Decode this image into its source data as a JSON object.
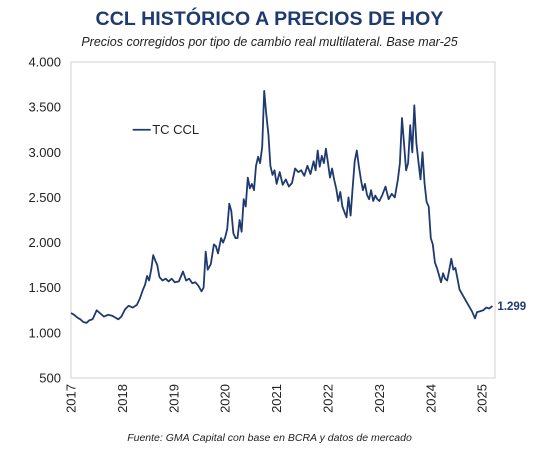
{
  "chart_data": {
    "type": "line",
    "title": "CCL HISTÓRICO A PRECIOS DE HOY",
    "subtitle": "Precios corregidos por tipo de cambio real multilateral. Base mar-25",
    "source": "Fuente: GMA Capital con base en BCRA y datos de mercado",
    "ylim": [
      500,
      4000
    ],
    "yticks": [
      500,
      1000,
      1500,
      2000,
      2500,
      3000,
      3500,
      4000
    ],
    "ytick_labels": [
      "500",
      "1.000",
      "1.500",
      "2.000",
      "2.500",
      "3.000",
      "3.500",
      "4.000"
    ],
    "xlim": [
      2017.0,
      2025.25
    ],
    "xticks": [
      2017,
      2018,
      2019,
      2020,
      2021,
      2022,
      2023,
      2024,
      2025
    ],
    "xtick_labels": [
      "2017",
      "2018",
      "2019",
      "2020",
      "2021",
      "2022",
      "2023",
      "2024",
      "2025"
    ],
    "grid": false,
    "legend": "upper-left",
    "last_value_label": "1.299",
    "line_color": "#1f3a70",
    "series": [
      {
        "name": "TC CCL",
        "points": [
          [
            2017.0,
            1220
          ],
          [
            2017.06,
            1200
          ],
          [
            2017.12,
            1170
          ],
          [
            2017.18,
            1150
          ],
          [
            2017.24,
            1120
          ],
          [
            2017.3,
            1110
          ],
          [
            2017.36,
            1140
          ],
          [
            2017.42,
            1150
          ],
          [
            2017.5,
            1250
          ],
          [
            2017.56,
            1220
          ],
          [
            2017.64,
            1180
          ],
          [
            2017.72,
            1200
          ],
          [
            2017.8,
            1190
          ],
          [
            2017.86,
            1170
          ],
          [
            2017.92,
            1150
          ],
          [
            2017.98,
            1180
          ],
          [
            2018.05,
            1260
          ],
          [
            2018.12,
            1300
          ],
          [
            2018.2,
            1280
          ],
          [
            2018.28,
            1310
          ],
          [
            2018.34,
            1380
          ],
          [
            2018.4,
            1480
          ],
          [
            2018.44,
            1530
          ],
          [
            2018.48,
            1630
          ],
          [
            2018.52,
            1580
          ],
          [
            2018.56,
            1700
          ],
          [
            2018.6,
            1860
          ],
          [
            2018.64,
            1800
          ],
          [
            2018.68,
            1750
          ],
          [
            2018.72,
            1620
          ],
          [
            2018.78,
            1580
          ],
          [
            2018.84,
            1600
          ],
          [
            2018.9,
            1570
          ],
          [
            2018.96,
            1600
          ],
          [
            2019.02,
            1560
          ],
          [
            2019.1,
            1570
          ],
          [
            2019.18,
            1680
          ],
          [
            2019.24,
            1580
          ],
          [
            2019.3,
            1600
          ],
          [
            2019.36,
            1550
          ],
          [
            2019.42,
            1560
          ],
          [
            2019.48,
            1520
          ],
          [
            2019.54,
            1460
          ],
          [
            2019.58,
            1500
          ],
          [
            2019.62,
            1900
          ],
          [
            2019.66,
            1700
          ],
          [
            2019.72,
            1760
          ],
          [
            2019.78,
            1980
          ],
          [
            2019.82,
            1960
          ],
          [
            2019.86,
            1880
          ],
          [
            2019.92,
            2050
          ],
          [
            2019.96,
            2000
          ],
          [
            2020.0,
            2060
          ],
          [
            2020.04,
            2150
          ],
          [
            2020.08,
            2430
          ],
          [
            2020.12,
            2350
          ],
          [
            2020.16,
            2100
          ],
          [
            2020.2,
            2050
          ],
          [
            2020.24,
            2050
          ],
          [
            2020.28,
            2250
          ],
          [
            2020.32,
            2120
          ],
          [
            2020.36,
            2480
          ],
          [
            2020.4,
            2400
          ],
          [
            2020.44,
            2720
          ],
          [
            2020.48,
            2600
          ],
          [
            2020.52,
            2650
          ],
          [
            2020.56,
            2580
          ],
          [
            2020.6,
            2850
          ],
          [
            2020.64,
            2950
          ],
          [
            2020.68,
            2880
          ],
          [
            2020.72,
            3060
          ],
          [
            2020.76,
            3680
          ],
          [
            2020.8,
            3420
          ],
          [
            2020.84,
            3200
          ],
          [
            2020.88,
            2850
          ],
          [
            2020.92,
            2750
          ],
          [
            2020.96,
            2800
          ],
          [
            2021.0,
            2650
          ],
          [
            2021.06,
            2780
          ],
          [
            2021.12,
            2640
          ],
          [
            2021.18,
            2700
          ],
          [
            2021.24,
            2620
          ],
          [
            2021.3,
            2660
          ],
          [
            2021.36,
            2820
          ],
          [
            2021.42,
            2780
          ],
          [
            2021.48,
            2800
          ],
          [
            2021.54,
            2740
          ],
          [
            2021.6,
            2850
          ],
          [
            2021.66,
            2760
          ],
          [
            2021.72,
            2900
          ],
          [
            2021.76,
            2800
          ],
          [
            2021.8,
            3020
          ],
          [
            2021.84,
            2840
          ],
          [
            2021.88,
            2960
          ],
          [
            2021.92,
            2880
          ],
          [
            2021.96,
            3040
          ],
          [
            2022.0,
            2880
          ],
          [
            2022.04,
            2720
          ],
          [
            2022.08,
            2820
          ],
          [
            2022.12,
            2700
          ],
          [
            2022.16,
            2600
          ],
          [
            2022.2,
            2460
          ],
          [
            2022.24,
            2560
          ],
          [
            2022.28,
            2400
          ],
          [
            2022.32,
            2340
          ],
          [
            2022.36,
            2280
          ],
          [
            2022.4,
            2500
          ],
          [
            2022.44,
            2300
          ],
          [
            2022.48,
            2600
          ],
          [
            2022.52,
            2900
          ],
          [
            2022.56,
            3020
          ],
          [
            2022.6,
            2850
          ],
          [
            2022.64,
            2700
          ],
          [
            2022.68,
            2580
          ],
          [
            2022.72,
            2650
          ],
          [
            2022.76,
            2530
          ],
          [
            2022.8,
            2480
          ],
          [
            2022.84,
            2580
          ],
          [
            2022.88,
            2460
          ],
          [
            2022.92,
            2520
          ],
          [
            2022.96,
            2480
          ],
          [
            2023.0,
            2460
          ],
          [
            2023.06,
            2530
          ],
          [
            2023.12,
            2620
          ],
          [
            2023.18,
            2480
          ],
          [
            2023.24,
            2540
          ],
          [
            2023.3,
            2500
          ],
          [
            2023.36,
            2700
          ],
          [
            2023.4,
            2880
          ],
          [
            2023.44,
            3380
          ],
          [
            2023.48,
            3100
          ],
          [
            2023.52,
            2800
          ],
          [
            2023.56,
            2880
          ],
          [
            2023.6,
            3300
          ],
          [
            2023.64,
            3000
          ],
          [
            2023.68,
            3520
          ],
          [
            2023.72,
            3100
          ],
          [
            2023.76,
            2900
          ],
          [
            2023.8,
            2700
          ],
          [
            2023.84,
            3000
          ],
          [
            2023.88,
            2650
          ],
          [
            2023.92,
            2450
          ],
          [
            2023.96,
            2400
          ],
          [
            2024.0,
            2050
          ],
          [
            2024.04,
            1980
          ],
          [
            2024.08,
            1780
          ],
          [
            2024.12,
            1720
          ],
          [
            2024.16,
            1640
          ],
          [
            2024.2,
            1560
          ],
          [
            2024.24,
            1660
          ],
          [
            2024.28,
            1600
          ],
          [
            2024.32,
            1580
          ],
          [
            2024.36,
            1700
          ],
          [
            2024.4,
            1820
          ],
          [
            2024.44,
            1700
          ],
          [
            2024.48,
            1720
          ],
          [
            2024.52,
            1600
          ],
          [
            2024.56,
            1480
          ],
          [
            2024.62,
            1420
          ],
          [
            2024.68,
            1360
          ],
          [
            2024.74,
            1300
          ],
          [
            2024.8,
            1240
          ],
          [
            2024.86,
            1160
          ],
          [
            2024.9,
            1230
          ],
          [
            2024.96,
            1240
          ],
          [
            2025.02,
            1250
          ],
          [
            2025.08,
            1280
          ],
          [
            2025.14,
            1270
          ],
          [
            2025.2,
            1299
          ]
        ]
      }
    ]
  }
}
